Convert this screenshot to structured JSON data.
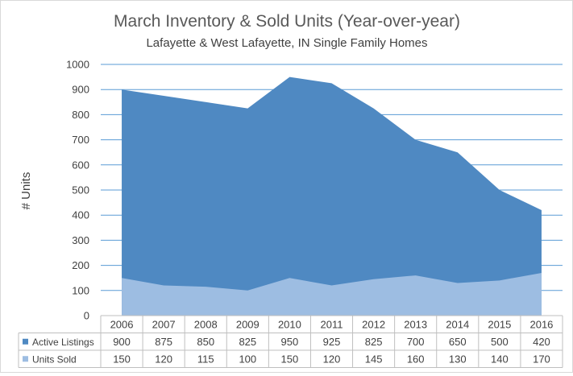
{
  "chart_data": {
    "type": "area",
    "title": "March Inventory & Sold Units (Year-over-year)",
    "subtitle": "Lafayette & West Lafayette, IN Single Family Homes",
    "ylabel": "# Units",
    "xlabel": "",
    "ylim": [
      0,
      1000
    ],
    "yticks": [
      0,
      100,
      200,
      300,
      400,
      500,
      600,
      700,
      800,
      900,
      1000
    ],
    "grid": true,
    "legend": "data-table",
    "categories": [
      "2006",
      "2007",
      "2008",
      "2009",
      "2010",
      "2011",
      "2012",
      "2013",
      "2014",
      "2015",
      "2016"
    ],
    "series": [
      {
        "name": "Active Listings",
        "color": "#4f89c2",
        "values": [
          900,
          875,
          850,
          825,
          950,
          925,
          825,
          700,
          650,
          500,
          420
        ]
      },
      {
        "name": "Units Sold",
        "color": "#9dbde2",
        "values": [
          150,
          120,
          115,
          100,
          150,
          120,
          145,
          160,
          130,
          140,
          170
        ]
      }
    ]
  }
}
